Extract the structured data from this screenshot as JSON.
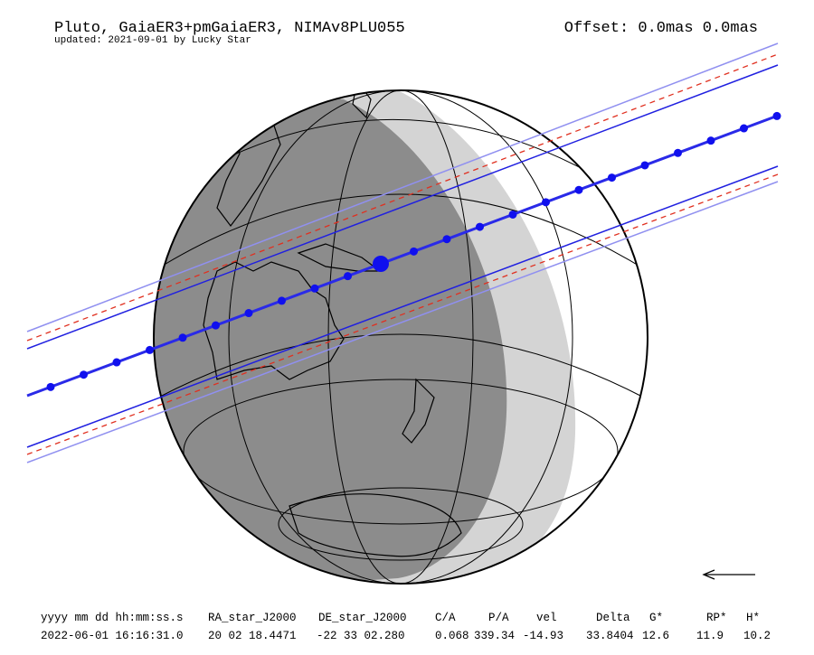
{
  "header": {
    "title": "Pluto, GaiaER3+pmGaiaER3, NIMAv8PLU055",
    "subtitle": "updated: 2021-09-01 by Lucky Star",
    "offset": "Offset: 0.0mas 0.0mas"
  },
  "table": {
    "headers": [
      "yyyy mm dd hh:mm:ss.s",
      "RA_star_J2000",
      "DE_star_J2000",
      "C/A",
      "P/A",
      "vel",
      "Delta",
      "G*",
      "RP*",
      "H*"
    ],
    "row": [
      "2022-06-01 16:16:31.0",
      "20 02 18.4471",
      "-22 33 02.280",
      "0.068",
      "339.34",
      "-14.93",
      "33.8404",
      "12.6",
      "11.9",
      "10.2"
    ]
  }
}
